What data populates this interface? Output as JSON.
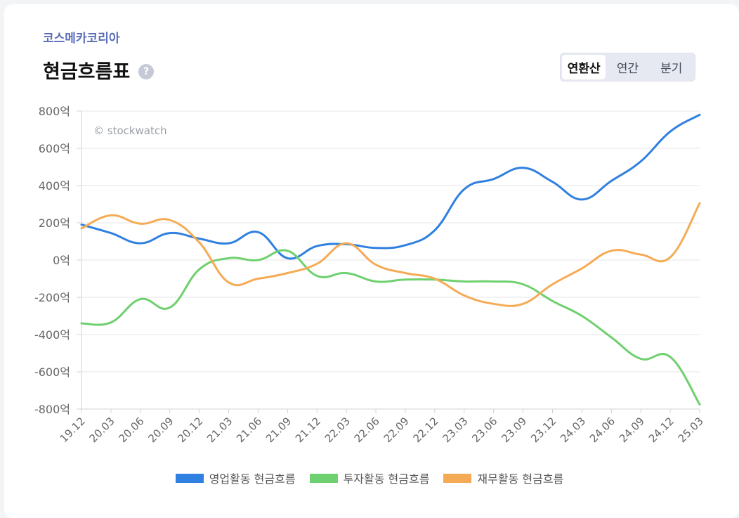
{
  "company": "코스메카코리아",
  "title": "현금흐름표",
  "help_icon": "question-icon",
  "tabs": [
    {
      "label": "연환산",
      "active": true
    },
    {
      "label": "연간",
      "active": false
    },
    {
      "label": "분기",
      "active": false
    }
  ],
  "watermark": "© stockwatch",
  "colors": {
    "operating": "#2f80e0",
    "investing": "#6fd06f",
    "financing": "#f5ab55"
  },
  "chart_data": {
    "type": "line",
    "x": [
      "19.12",
      "20.03",
      "20.06",
      "20.09",
      "20.12",
      "21.03",
      "21.06",
      "21.09",
      "21.12",
      "22.03",
      "22.06",
      "22.09",
      "22.12",
      "23.03",
      "23.06",
      "23.09",
      "23.12",
      "24.03",
      "24.06",
      "24.09",
      "24.12",
      "25.03"
    ],
    "yticks": [
      "800억",
      "600억",
      "400억",
      "200억",
      "0억",
      "-200억",
      "-400억",
      "-600억",
      "-800억"
    ],
    "ylim": [
      -800,
      800
    ],
    "grid": true,
    "legend_position": "bottom",
    "series": [
      {
        "name": "영업활동 현금흐름",
        "color": "#2f80e0",
        "values": [
          190,
          145,
          90,
          145,
          115,
          90,
          150,
          10,
          75,
          85,
          65,
          80,
          160,
          380,
          435,
          495,
          420,
          325,
          425,
          530,
          690,
          780
        ]
      },
      {
        "name": "투자활동 현금흐름",
        "color": "#6fd06f",
        "values": [
          -340,
          -335,
          -210,
          -255,
          -50,
          10,
          0,
          50,
          -85,
          -70,
          -115,
          -105,
          -105,
          -115,
          -115,
          -130,
          -220,
          -300,
          -415,
          -530,
          -520,
          -775
        ]
      },
      {
        "name": "재무활동 현금흐름",
        "color": "#f5ab55",
        "values": [
          170,
          240,
          195,
          215,
          95,
          -120,
          -100,
          -70,
          -20,
          90,
          -25,
          -70,
          -100,
          -190,
          -235,
          -235,
          -130,
          -45,
          50,
          30,
          15,
          305
        ]
      }
    ]
  }
}
